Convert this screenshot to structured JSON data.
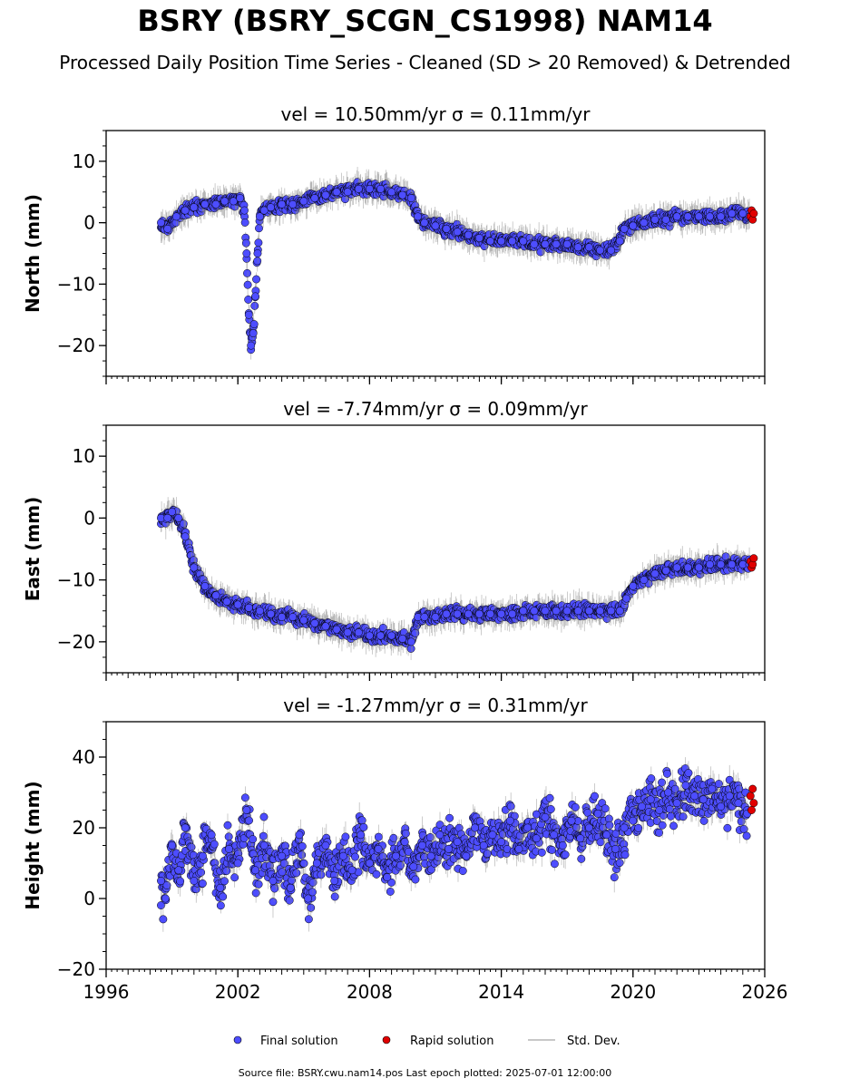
{
  "header": {
    "title": "BSRY (BSRY_SCGN_CS1998) NAM14",
    "subtitle": "Processed Daily Position Time Series - Cleaned (SD > 20 Removed) & Detrended"
  },
  "legend": {
    "final_label": "Final solution",
    "rapid_label": "Rapid solution",
    "std_label": "Std. Dev."
  },
  "footer": {
    "note": "Source file: BSRY.cwu.nam14.pos  Last epoch plotted: 2025-07-01 12:00:00"
  },
  "colors": {
    "final": "#4d4dff",
    "rapid": "#e00000",
    "marker_edge": "#000000",
    "std_dev": "#c8c8c8"
  },
  "chart_data": [
    {
      "type": "scatter",
      "title": "vel = 10.50mm/yr   σ = 0.11mm/yr",
      "ylabel": "North (mm)",
      "xlim": [
        1996,
        2026
      ],
      "ylim": [
        -25,
        15
      ],
      "yticks": [
        -20,
        -10,
        0,
        10
      ],
      "series": [
        {
          "name": "Final solution",
          "x": [
            1998.5,
            1998.8,
            1999.2,
            1999.6,
            2000.0,
            2000.5,
            2001.0,
            2001.4,
            2001.8,
            2002.1,
            2002.3,
            2002.4,
            2002.5,
            2002.6,
            2002.7,
            2002.8,
            2002.9,
            2003.0,
            2003.2,
            2003.5,
            2004.0,
            2004.5,
            2005.0,
            2005.5,
            2006.0,
            2006.5,
            2007.0,
            2007.5,
            2008.0,
            2008.5,
            2009.0,
            2009.5,
            2009.9,
            2010.2,
            2010.5,
            2011.0,
            2011.5,
            2012.0,
            2012.5,
            2013.0,
            2013.5,
            2014.0,
            2014.5,
            2015.0,
            2015.5,
            2016.0,
            2016.5,
            2017.0,
            2017.5,
            2018.0,
            2018.5,
            2019.0,
            2019.4,
            2019.6,
            2020.0,
            2020.5,
            2021.0,
            2021.5,
            2022.0,
            2022.5,
            2023.0,
            2023.5,
            2024.0,
            2024.5,
            2025.0,
            2025.3
          ],
          "y": [
            0,
            -1,
            1,
            2,
            2.5,
            3,
            3,
            3.5,
            3.5,
            4,
            2,
            -5,
            -15,
            -20,
            -18,
            -12,
            -5,
            1,
            2,
            2.5,
            3,
            3,
            3.5,
            4,
            4.5,
            5,
            5,
            5.5,
            5.5,
            5.5,
            5,
            4.5,
            4,
            1,
            0,
            -0.5,
            -1,
            -1.5,
            -2,
            -2.5,
            -3,
            -3,
            -3,
            -3,
            -3.5,
            -3.5,
            -3.5,
            -3.5,
            -4,
            -4,
            -4.5,
            -4.5,
            -3,
            -1,
            -0.5,
            0,
            0.5,
            0.5,
            1,
            1,
            1,
            1,
            1,
            1.5,
            1.5,
            1
          ]
        },
        {
          "name": "Rapid solution",
          "x": [
            2025.35,
            2025.4,
            2025.45,
            2025.5
          ],
          "y": [
            1,
            2,
            0.5,
            1.5
          ]
        }
      ]
    },
    {
      "type": "scatter",
      "title": "vel = -7.74mm/yr   σ = 0.09mm/yr",
      "ylabel": "East (mm)",
      "xlim": [
        1996,
        2026
      ],
      "ylim": [
        -25,
        15
      ],
      "yticks": [
        -20,
        -10,
        0,
        10
      ],
      "series": [
        {
          "name": "Final solution",
          "x": [
            1998.5,
            1998.8,
            1999.0,
            1999.3,
            1999.6,
            2000.0,
            2000.5,
            2001.0,
            2001.5,
            2002.0,
            2002.5,
            2003.0,
            2003.5,
            2004.0,
            2004.5,
            2005.0,
            2005.5,
            2006.0,
            2006.5,
            2007.0,
            2007.5,
            2008.0,
            2008.5,
            2009.0,
            2009.5,
            2009.9,
            2010.2,
            2010.5,
            2011.0,
            2011.5,
            2012.0,
            2012.5,
            2013.0,
            2013.5,
            2014.0,
            2014.5,
            2015.0,
            2015.5,
            2016.0,
            2016.5,
            2017.0,
            2017.5,
            2018.0,
            2018.5,
            2019.0,
            2019.4,
            2019.7,
            2020.0,
            2020.5,
            2021.0,
            2021.5,
            2022.0,
            2022.5,
            2023.0,
            2023.5,
            2024.0,
            2024.5,
            2025.0,
            2025.3
          ],
          "y": [
            0,
            0,
            1,
            0,
            -3,
            -8,
            -11,
            -12.5,
            -13.5,
            -14,
            -14.5,
            -15,
            -15.5,
            -16,
            -16,
            -16.5,
            -17,
            -17.5,
            -18,
            -18.5,
            -18.5,
            -19,
            -19,
            -19,
            -19.5,
            -20,
            -16,
            -16,
            -16,
            -15.5,
            -15.5,
            -15.5,
            -15.5,
            -15.5,
            -15.5,
            -15.5,
            -15,
            -15,
            -15,
            -15,
            -15,
            -15,
            -15,
            -15,
            -15,
            -15,
            -13,
            -11,
            -10,
            -9,
            -8.5,
            -8,
            -8,
            -8,
            -7.5,
            -7.5,
            -7.5,
            -7.5,
            -7.5
          ]
        },
        {
          "name": "Rapid solution",
          "x": [
            2025.35,
            2025.4,
            2025.45,
            2025.5
          ],
          "y": [
            -7,
            -8,
            -7.5,
            -6.5
          ]
        }
      ]
    },
    {
      "type": "scatter",
      "title": "vel = -1.27mm/yr   σ = 0.31mm/yr",
      "ylabel": "Height (mm)",
      "xlim": [
        1996,
        2026
      ],
      "ylim": [
        -20,
        50
      ],
      "yticks": [
        -20,
        0,
        20,
        40
      ],
      "series": [
        {
          "name": "Final solution",
          "x": [
            1998.5,
            1998.7,
            1999.0,
            1999.3,
            1999.6,
            2000.0,
            2000.4,
            2000.8,
            2001.2,
            2001.6,
            2002.0,
            2002.4,
            2002.8,
            2003.2,
            2003.6,
            2004.0,
            2004.4,
            2004.8,
            2005.2,
            2005.6,
            2006.0,
            2006.4,
            2006.8,
            2007.2,
            2007.6,
            2008.0,
            2008.4,
            2008.8,
            2009.2,
            2009.6,
            2010.0,
            2010.4,
            2010.8,
            2011.2,
            2011.6,
            2012.0,
            2012.4,
            2012.8,
            2013.2,
            2013.6,
            2014.0,
            2014.4,
            2014.8,
            2015.2,
            2015.6,
            2016.0,
            2016.4,
            2016.8,
            2017.2,
            2017.6,
            2018.0,
            2018.4,
            2018.8,
            2019.2,
            2019.6,
            2020.0,
            2020.4,
            2020.8,
            2021.2,
            2021.6,
            2022.0,
            2022.4,
            2022.8,
            2023.2,
            2023.6,
            2024.0,
            2024.4,
            2024.8,
            2025.2
          ],
          "y": [
            5,
            0,
            15,
            8,
            20,
            5,
            12,
            18,
            3,
            14,
            10,
            25,
            8,
            15,
            5,
            12,
            3,
            18,
            0,
            10,
            15,
            5,
            12,
            8,
            18,
            10,
            14,
            6,
            12,
            16,
            9,
            15,
            12,
            18,
            14,
            16,
            12,
            20,
            15,
            18,
            16,
            22,
            14,
            20,
            17,
            23,
            18,
            15,
            22,
            17,
            20,
            24,
            18,
            14,
            20,
            22,
            26,
            28,
            25,
            30,
            27,
            32,
            29,
            28,
            31,
            26,
            29,
            27,
            24
          ]
        },
        {
          "name": "Rapid solution",
          "x": [
            2025.35,
            2025.4,
            2025.45,
            2025.5
          ],
          "y": [
            29,
            25,
            31,
            27
          ]
        }
      ]
    }
  ]
}
